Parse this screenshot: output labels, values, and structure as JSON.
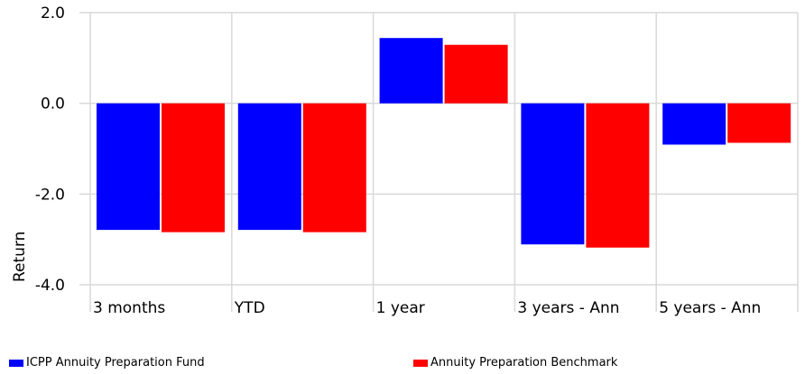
{
  "chart_data": {
    "type": "bar",
    "categories": [
      "3 months",
      "YTD",
      "1 year",
      "3 years - Ann",
      "5 years - Ann"
    ],
    "series": [
      {
        "name": "ICPP Annuity Preparation Fund",
        "color": "#0000ff",
        "values": [
          -2.79,
          -2.79,
          1.44,
          -3.11,
          -0.91
        ]
      },
      {
        "name": "Annuity Preparation Benchmark",
        "color": "#ff0000",
        "values": [
          -2.84,
          -2.84,
          1.29,
          -3.18,
          -0.87
        ]
      }
    ],
    "ylabel": "Return",
    "xlabel": "",
    "ylim": [
      -4.0,
      2.0
    ],
    "yticks": [
      "2.0",
      "0.0",
      "-2.0",
      "-4.0"
    ],
    "ytick_values": [
      2.0,
      0.0,
      -2.0,
      -4.0
    ],
    "grid": true,
    "legend_position": "bottom"
  }
}
